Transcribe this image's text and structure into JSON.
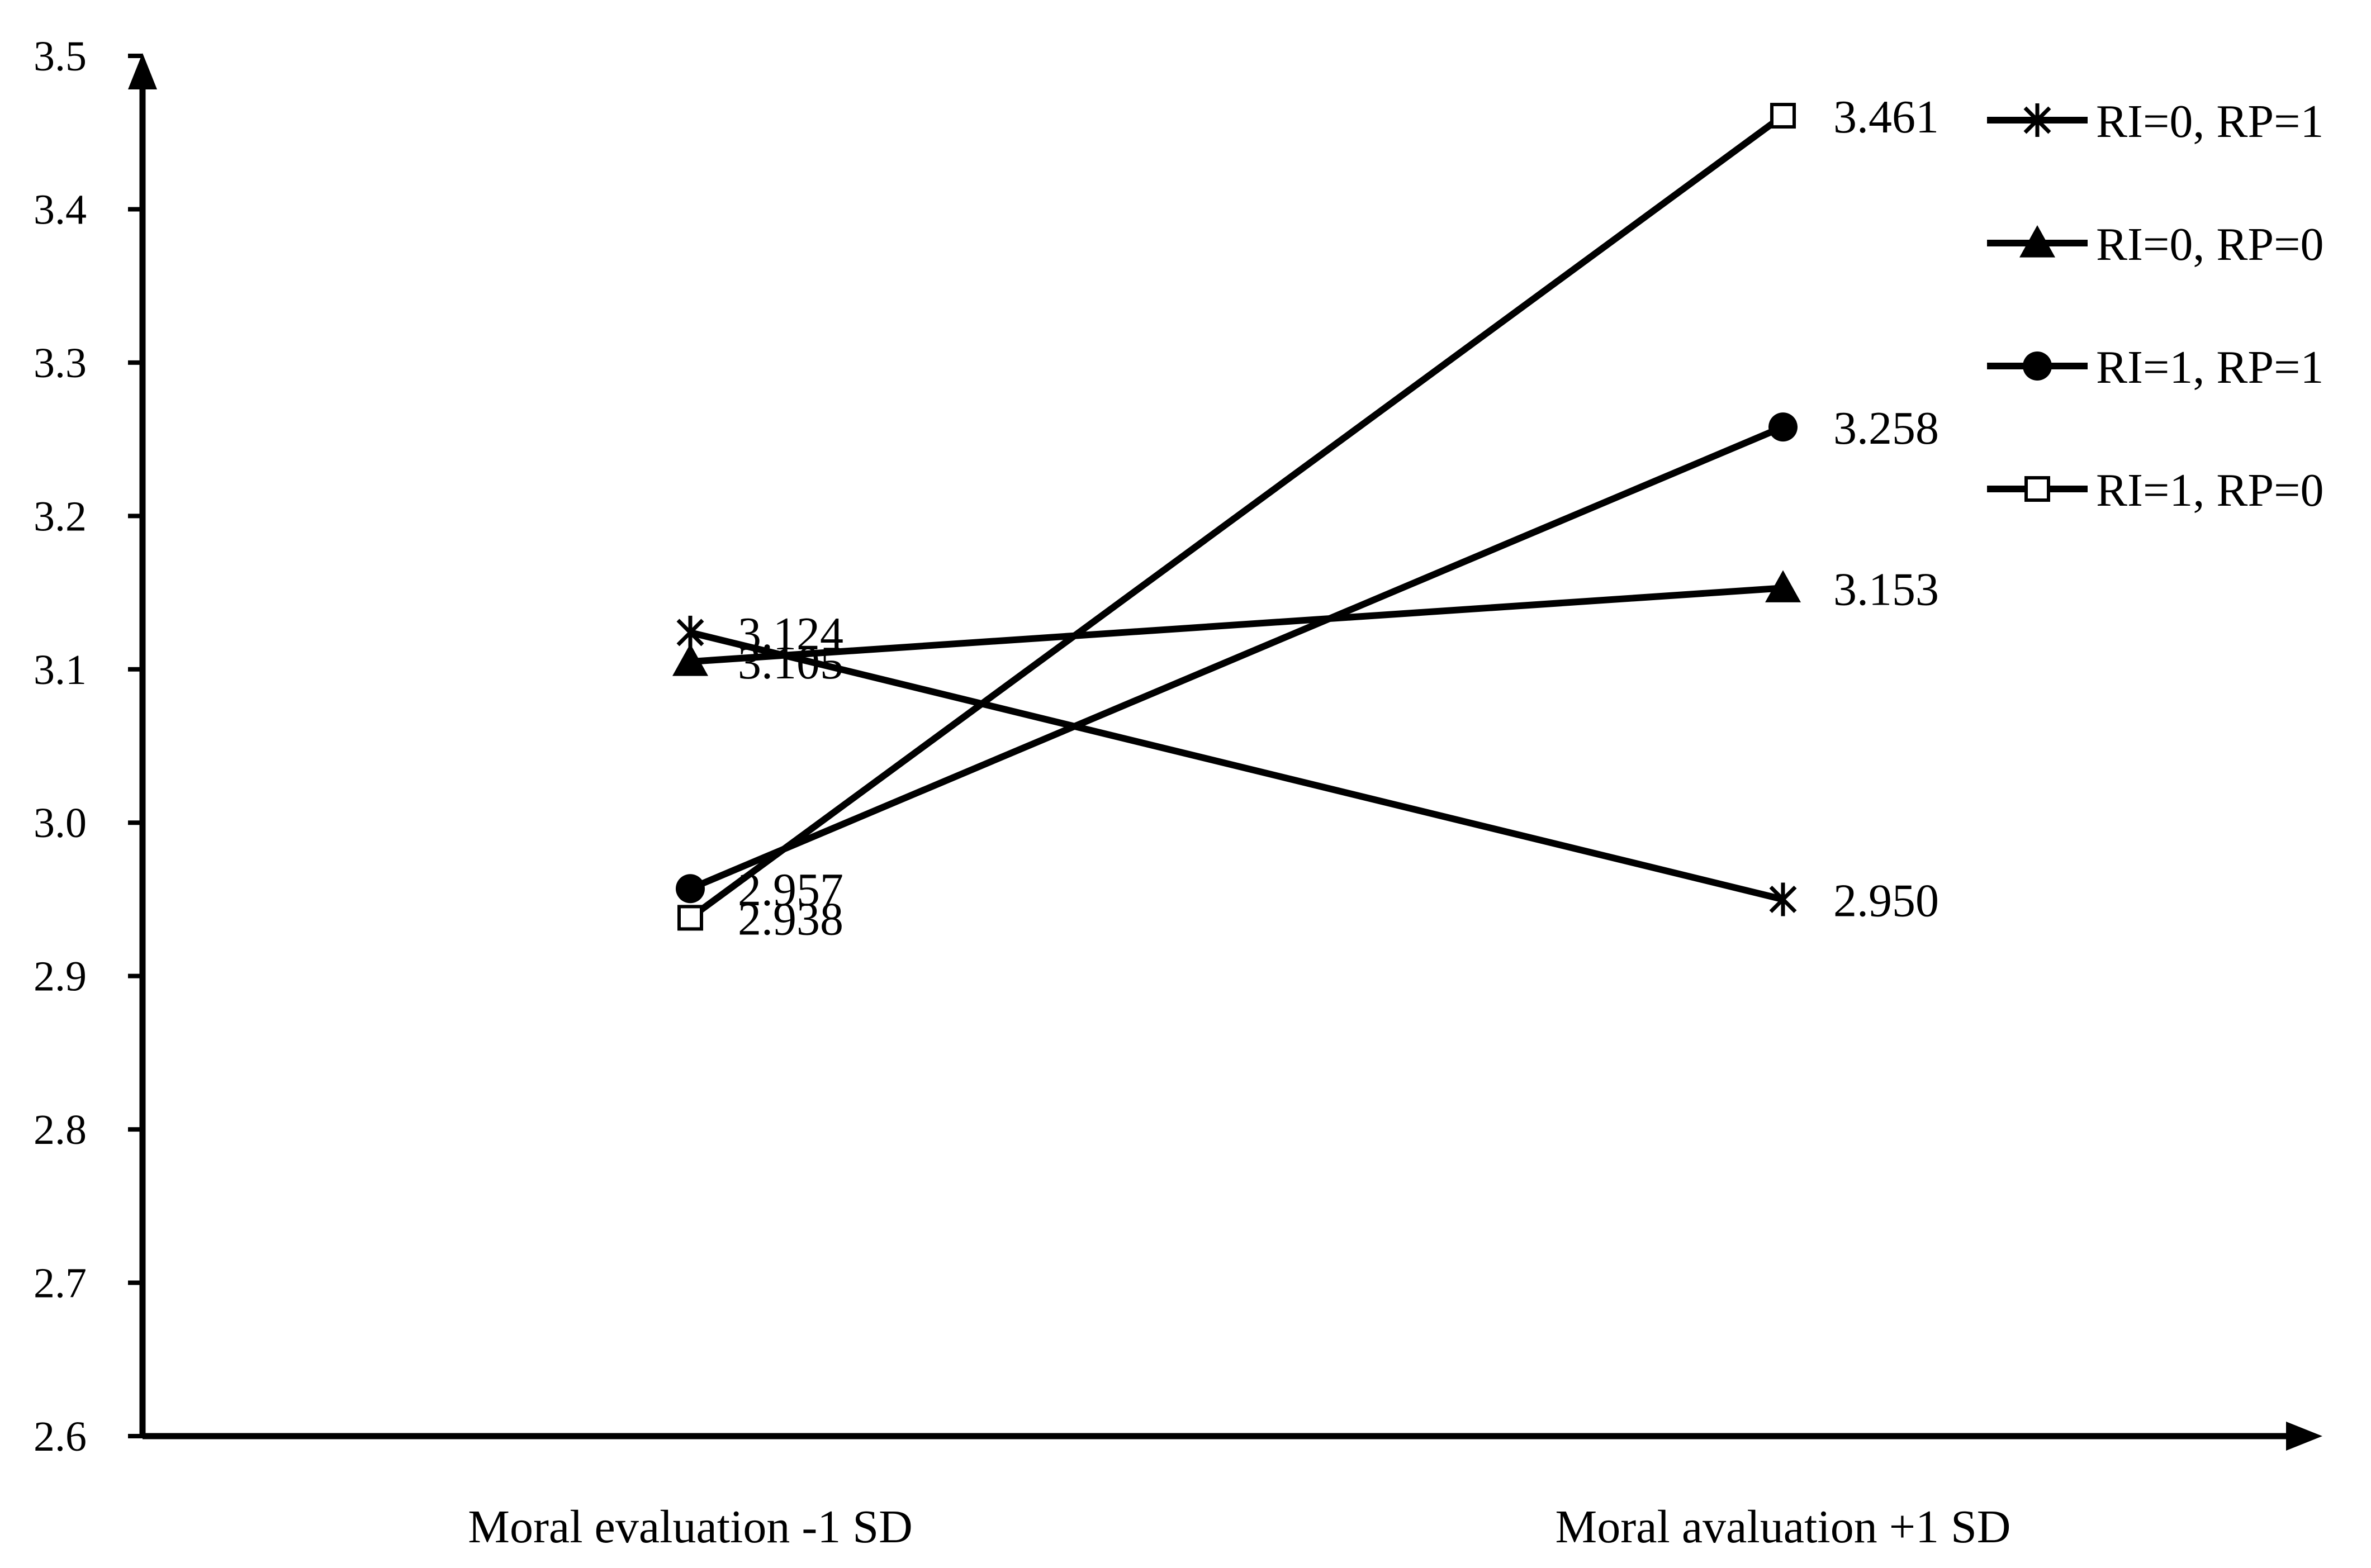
{
  "chart_data": {
    "type": "line",
    "title": "",
    "xlabel": "",
    "ylabel": "",
    "categories": [
      "Moral evaluation -1 SD",
      "Moral avaluation +1 SD"
    ],
    "ylim": [
      2.6,
      3.5
    ],
    "yticks": [
      "2.6",
      "2.7",
      "2.8",
      "2.9",
      "3.0",
      "3.1",
      "3.2",
      "3.3",
      "3.4",
      "3.5"
    ],
    "grid": false,
    "legend_position": "top-right",
    "series": [
      {
        "name": "RI=0, RP=1",
        "marker": "star",
        "values": [
          3.124,
          2.95
        ],
        "labels": [
          "3.124",
          "2.950"
        ]
      },
      {
        "name": "RI=0, RP=0",
        "marker": "triangle",
        "values": [
          3.105,
          3.153
        ],
        "labels": [
          "3.105",
          "3.153"
        ]
      },
      {
        "name": "RI=1, RP=1",
        "marker": "circle",
        "values": [
          2.957,
          3.258
        ],
        "labels": [
          "2.957",
          "3.258"
        ]
      },
      {
        "name": "RI=1, RP=0",
        "marker": "square-open",
        "values": [
          2.938,
          3.461
        ],
        "labels": [
          "2.938",
          "3.461"
        ]
      }
    ],
    "line_color": "#000000"
  }
}
